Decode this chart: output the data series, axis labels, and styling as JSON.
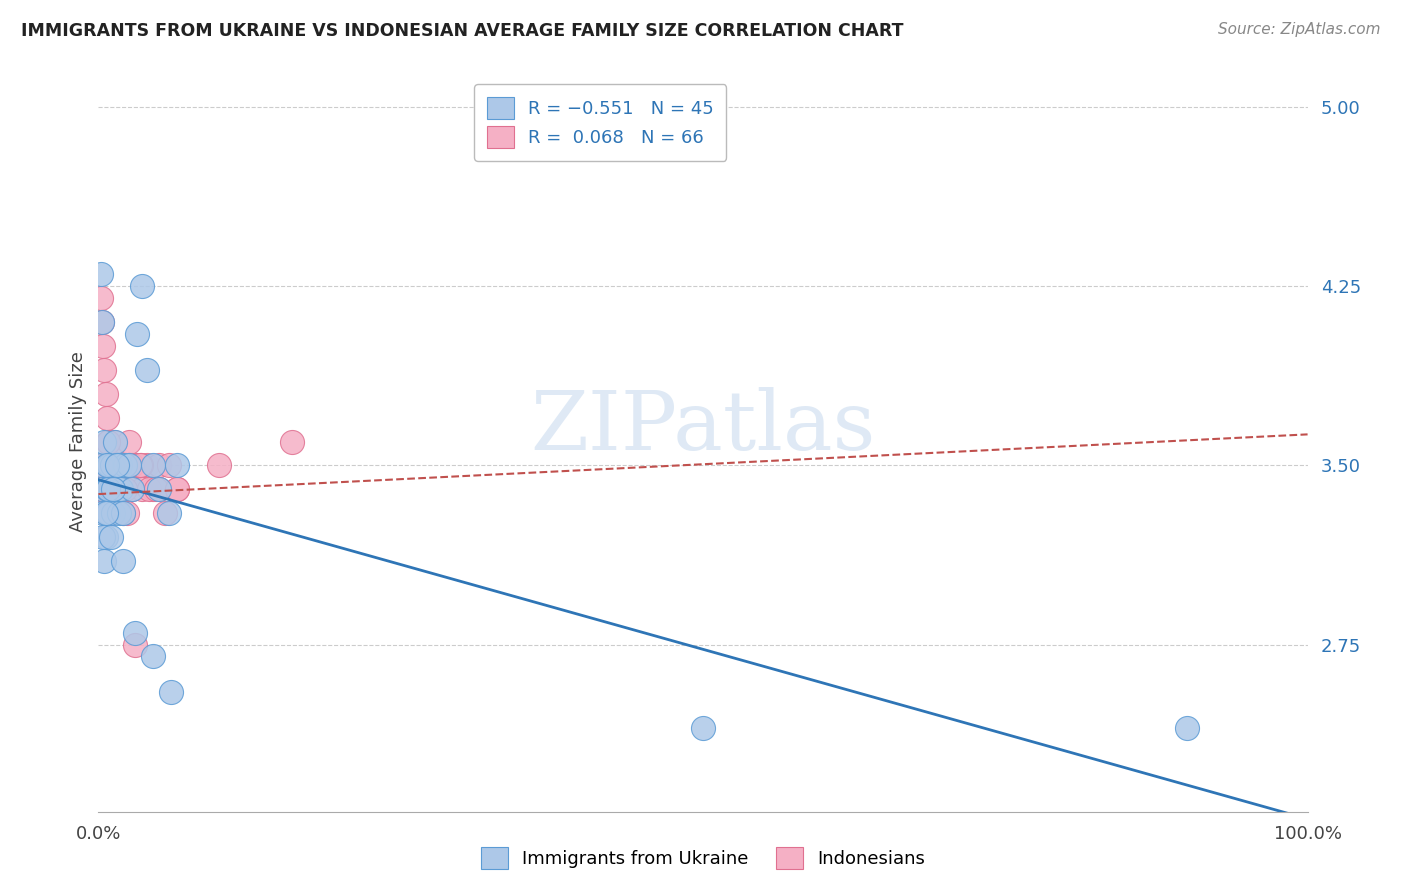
{
  "title": "IMMIGRANTS FROM UKRAINE VS INDONESIAN AVERAGE FAMILY SIZE CORRELATION CHART",
  "source": "Source: ZipAtlas.com",
  "ylabel": "Average Family Size",
  "right_yticks": [
    2.75,
    3.5,
    4.25,
    5.0
  ],
  "right_ytick_labels": [
    "2.75",
    "3.50",
    "4.25",
    "5.00"
  ],
  "xlim": [
    0.0,
    1.0
  ],
  "ylim": [
    2.05,
    5.15
  ],
  "ukraine_color": "#adc8e8",
  "indonesia_color": "#f5b0c5",
  "ukraine_edge_color": "#5b9bd5",
  "indonesia_edge_color": "#e07090",
  "ukraine_line_color": "#2e75b6",
  "indonesia_line_color": "#c0504d",
  "watermark_color": "#c5d8ed",
  "watermark": "ZIPatlas",
  "ukraine_trend": [
    3.44,
    2.02
  ],
  "indonesia_trend": [
    3.38,
    3.63
  ],
  "ukraine_x": [
    0.002,
    0.003,
    0.004,
    0.005,
    0.006,
    0.007,
    0.008,
    0.009,
    0.01,
    0.011,
    0.012,
    0.013,
    0.014,
    0.015,
    0.016,
    0.017,
    0.018,
    0.019,
    0.02,
    0.022,
    0.025,
    0.028,
    0.032,
    0.036,
    0.04,
    0.045,
    0.05,
    0.058,
    0.065,
    0.002,
    0.003,
    0.004,
    0.005,
    0.006,
    0.007,
    0.008,
    0.01,
    0.012,
    0.015,
    0.02,
    0.03,
    0.045,
    0.06,
    0.5,
    0.9
  ],
  "ukraine_y": [
    3.5,
    3.4,
    3.3,
    3.6,
    3.2,
    3.4,
    3.3,
    3.5,
    3.4,
    3.5,
    3.3,
    3.4,
    3.6,
    3.5,
    3.4,
    3.3,
    3.5,
    3.4,
    3.3,
    3.5,
    3.5,
    3.4,
    4.05,
    4.25,
    3.9,
    3.5,
    3.4,
    3.3,
    3.5,
    4.3,
    4.1,
    3.2,
    3.1,
    3.3,
    3.5,
    3.4,
    3.2,
    3.4,
    3.5,
    3.1,
    2.8,
    2.7,
    2.55,
    2.4,
    2.4
  ],
  "indonesia_x": [
    0.002,
    0.003,
    0.004,
    0.005,
    0.006,
    0.007,
    0.008,
    0.009,
    0.01,
    0.011,
    0.012,
    0.013,
    0.014,
    0.015,
    0.016,
    0.017,
    0.018,
    0.019,
    0.02,
    0.022,
    0.025,
    0.028,
    0.032,
    0.036,
    0.04,
    0.045,
    0.05,
    0.058,
    0.065,
    0.002,
    0.003,
    0.004,
    0.005,
    0.006,
    0.007,
    0.008,
    0.01,
    0.015,
    0.02,
    0.025,
    0.035,
    0.05,
    0.005,
    0.007,
    0.009,
    0.012,
    0.016,
    0.022,
    0.028,
    0.034,
    0.042,
    0.048,
    0.055,
    0.065,
    0.1,
    0.16,
    0.003,
    0.004,
    0.006,
    0.008,
    0.011,
    0.014,
    0.018,
    0.024,
    0.03
  ],
  "indonesia_y": [
    3.4,
    3.5,
    3.5,
    3.4,
    3.3,
    3.5,
    3.6,
    3.4,
    3.3,
    3.4,
    3.5,
    3.6,
    3.5,
    3.4,
    3.5,
    3.4,
    3.5,
    3.4,
    3.5,
    3.5,
    3.6,
    3.4,
    3.5,
    3.4,
    3.5,
    3.4,
    3.5,
    3.5,
    3.4,
    4.2,
    4.1,
    4.0,
    3.9,
    3.8,
    3.7,
    3.6,
    3.5,
    3.4,
    3.3,
    3.5,
    3.5,
    3.4,
    3.5,
    3.4,
    3.4,
    3.5,
    3.5,
    3.4,
    3.5,
    3.5,
    3.4,
    3.4,
    3.3,
    3.4,
    3.5,
    3.6,
    3.4,
    3.5,
    3.5,
    3.4,
    3.5,
    3.5,
    3.4,
    3.3,
    2.75
  ]
}
